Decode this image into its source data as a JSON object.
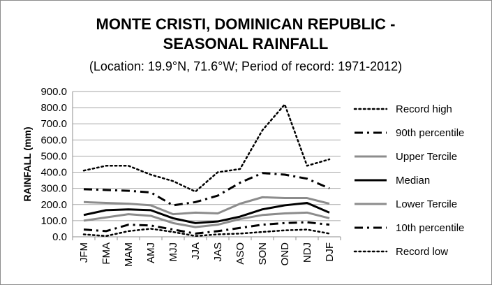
{
  "chart_data": {
    "type": "line",
    "title_line1": "MONTE CRISTI, DOMINICAN REPUBLIC -",
    "title_line2": "SEASONAL RAINFALL",
    "subtitle": "(Location: 19.9°N, 71.6°W; Period of record: 1971-2012)",
    "ylabel": "RAINFALL (mm)",
    "xlabel": "",
    "ylim": [
      0,
      900
    ],
    "yticks": [
      "0.0",
      "100.0",
      "200.0",
      "300.0",
      "400.0",
      "500.0",
      "600.0",
      "700.0",
      "800.0",
      "900.0"
    ],
    "categories": [
      "JFM",
      "FMA",
      "MAM",
      "AMJ",
      "MJJ",
      "JJA",
      "JAS",
      "ASO",
      "SON",
      "OND",
      "NDJ",
      "DJF"
    ],
    "grid": true,
    "legend_position": "right",
    "series": [
      {
        "name": "Record high",
        "style": "dotted",
        "color": "#000000",
        "width": 2.5,
        "values": [
          410,
          440,
          440,
          385,
          345,
          280,
          400,
          420,
          660,
          820,
          440,
          480
        ]
      },
      {
        "name": "90th percentile",
        "style": "dashdot",
        "color": "#000000",
        "width": 3,
        "values": [
          295,
          290,
          285,
          275,
          195,
          215,
          255,
          335,
          395,
          385,
          360,
          300
        ]
      },
      {
        "name": "Upper Tercile",
        "style": "solid",
        "color": "#8c8c8c",
        "width": 3,
        "values": [
          215,
          210,
          205,
          195,
          140,
          150,
          145,
          205,
          245,
          240,
          240,
          205
        ]
      },
      {
        "name": "Median",
        "style": "solid",
        "color": "#000000",
        "width": 3,
        "values": [
          135,
          165,
          170,
          165,
          115,
          85,
          95,
          125,
          170,
          195,
          210,
          150
        ]
      },
      {
        "name": "Lower Tercile",
        "style": "solid",
        "color": "#8c8c8c",
        "width": 3,
        "values": [
          100,
          120,
          140,
          130,
          85,
          60,
          75,
          110,
          135,
          145,
          150,
          115
        ]
      },
      {
        "name": "10th percentile",
        "style": "dashdot",
        "color": "#000000",
        "width": 3,
        "values": [
          45,
          35,
          75,
          70,
          45,
          20,
          35,
          55,
          75,
          85,
          90,
          75
        ]
      },
      {
        "name": "Record low",
        "style": "dotted",
        "color": "#000000",
        "width": 2.5,
        "values": [
          15,
          5,
          35,
          50,
          30,
          5,
          15,
          20,
          30,
          40,
          45,
          20
        ]
      }
    ]
  }
}
